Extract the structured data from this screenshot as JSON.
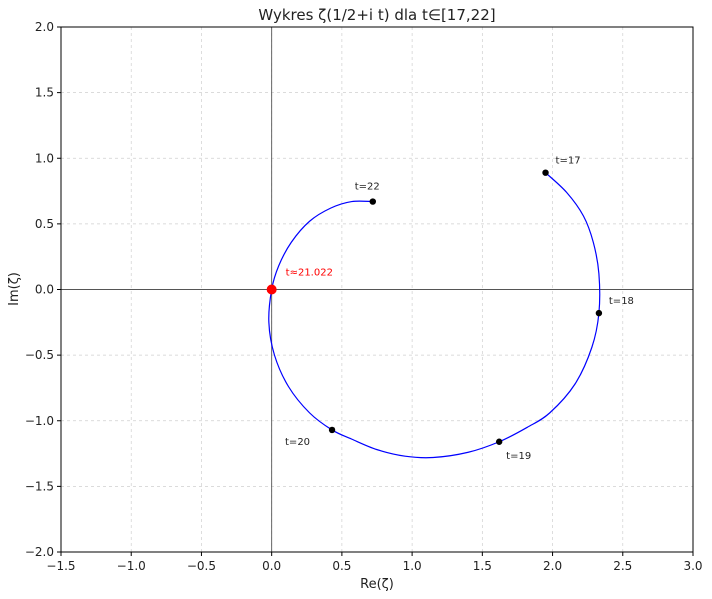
{
  "chart_data": {
    "type": "line",
    "title": "Wykres ζ(1/2+i t) dla t∈[17,22]",
    "xlabel": "Re(ζ)",
    "ylabel": "Im(ζ)",
    "xlim": [
      -1.5,
      3.0
    ],
    "ylim": [
      -2.0,
      2.0
    ],
    "xticks": [
      -1.5,
      -1.0,
      -0.5,
      0.0,
      0.5,
      1.0,
      1.5,
      2.0,
      2.5,
      3.0
    ],
    "xtick_labels": [
      "−1.5",
      "−1.0",
      "−0.5",
      "0.0",
      "0.5",
      "1.0",
      "1.5",
      "2.0",
      "2.5",
      "3.0"
    ],
    "yticks": [
      -2.0,
      -1.5,
      -1.0,
      -0.5,
      0.0,
      0.5,
      1.0,
      1.5,
      2.0
    ],
    "ytick_labels": [
      "−2.0",
      "−1.5",
      "−1.0",
      "−0.5",
      "0.0",
      "0.5",
      "1.0",
      "1.5",
      "2.0"
    ],
    "grid": true,
    "series": [
      {
        "color": "#0000ff",
        "points": [
          [
            1.95,
            0.89
          ],
          [
            2.1,
            0.74
          ],
          [
            2.22,
            0.56
          ],
          [
            2.29,
            0.36
          ],
          [
            2.33,
            0.12
          ],
          [
            2.33,
            -0.18
          ],
          [
            2.28,
            -0.44
          ],
          [
            2.16,
            -0.72
          ],
          [
            1.98,
            -0.94
          ],
          [
            1.82,
            -1.05
          ],
          [
            1.62,
            -1.16
          ],
          [
            1.4,
            -1.24
          ],
          [
            1.15,
            -1.28
          ],
          [
            0.95,
            -1.27
          ],
          [
            0.75,
            -1.22
          ],
          [
            0.57,
            -1.14
          ],
          [
            0.43,
            -1.07
          ],
          [
            0.27,
            -0.94
          ],
          [
            0.12,
            -0.74
          ],
          [
            0.02,
            -0.5
          ],
          [
            -0.02,
            -0.25
          ],
          [
            0.0,
            0.0
          ],
          [
            0.05,
            0.18
          ],
          [
            0.14,
            0.36
          ],
          [
            0.27,
            0.52
          ],
          [
            0.42,
            0.62
          ],
          [
            0.57,
            0.67
          ],
          [
            0.72,
            0.67
          ]
        ]
      }
    ],
    "marked_points": [
      {
        "label": "t=17",
        "x": 1.95,
        "y": 0.89,
        "label_pos": "upper-right"
      },
      {
        "label": "t=18",
        "x": 2.33,
        "y": -0.18,
        "label_pos": "upper-right"
      },
      {
        "label": "t=19",
        "x": 1.62,
        "y": -1.16,
        "label_pos": "lower-right"
      },
      {
        "label": "t=20",
        "x": 0.43,
        "y": -1.07,
        "label_pos": "lower-left"
      },
      {
        "label": "t=22",
        "x": 0.72,
        "y": 0.67,
        "label_pos": "upper-left"
      }
    ],
    "zero_point": {
      "label": "t≈21.022",
      "x": 0.0,
      "y": 0.0,
      "color": "#ff0000"
    },
    "reference_lines": {
      "x": 0.0,
      "y": 0.0
    }
  }
}
